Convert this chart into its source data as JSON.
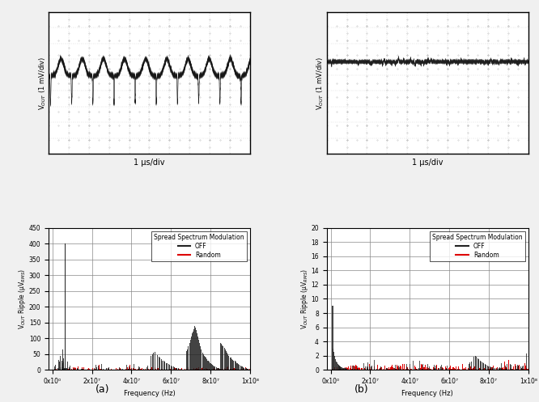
{
  "fig_width": 6.66,
  "fig_height": 4.97,
  "bg_color": "#f0f0f0",
  "osc_bg": "#ffffff",
  "grid_color": "#888888",
  "label_a": "(a)",
  "label_b": "(b)",
  "osc_ylabel": "V$_{OUT}$ (1 mV/div)",
  "osc_xlabel": "1 μs/div",
  "spec_ylabel_a": "V$_{OUT}$ Ripple (μV$_{RMS}$)",
  "spec_ylabel_b": "V$_{OUT}$ Ripple (μV$_{RMS}$)",
  "spec_xlabel": "Frequency (Hz)",
  "spec_yticks_a": [
    0,
    50,
    100,
    150,
    200,
    250,
    300,
    350,
    400,
    450
  ],
  "spec_yticks_b": [
    0,
    2,
    4,
    6,
    8,
    10,
    12,
    14,
    16,
    18,
    20
  ],
  "spec_xticks": [
    0,
    20000000,
    40000000,
    60000000,
    80000000,
    100000000
  ],
  "spec_xticklabels": [
    "0x10⁰",
    "2x10⁷",
    "4x10⁷",
    "6x10⁷",
    "8x10⁷",
    "1x10⁸"
  ],
  "legend_title": "Spread Spectrum Modulation",
  "legend_off": "OFF",
  "legend_random": "Random",
  "color_off": "#222222",
  "color_random": "#dd0000"
}
